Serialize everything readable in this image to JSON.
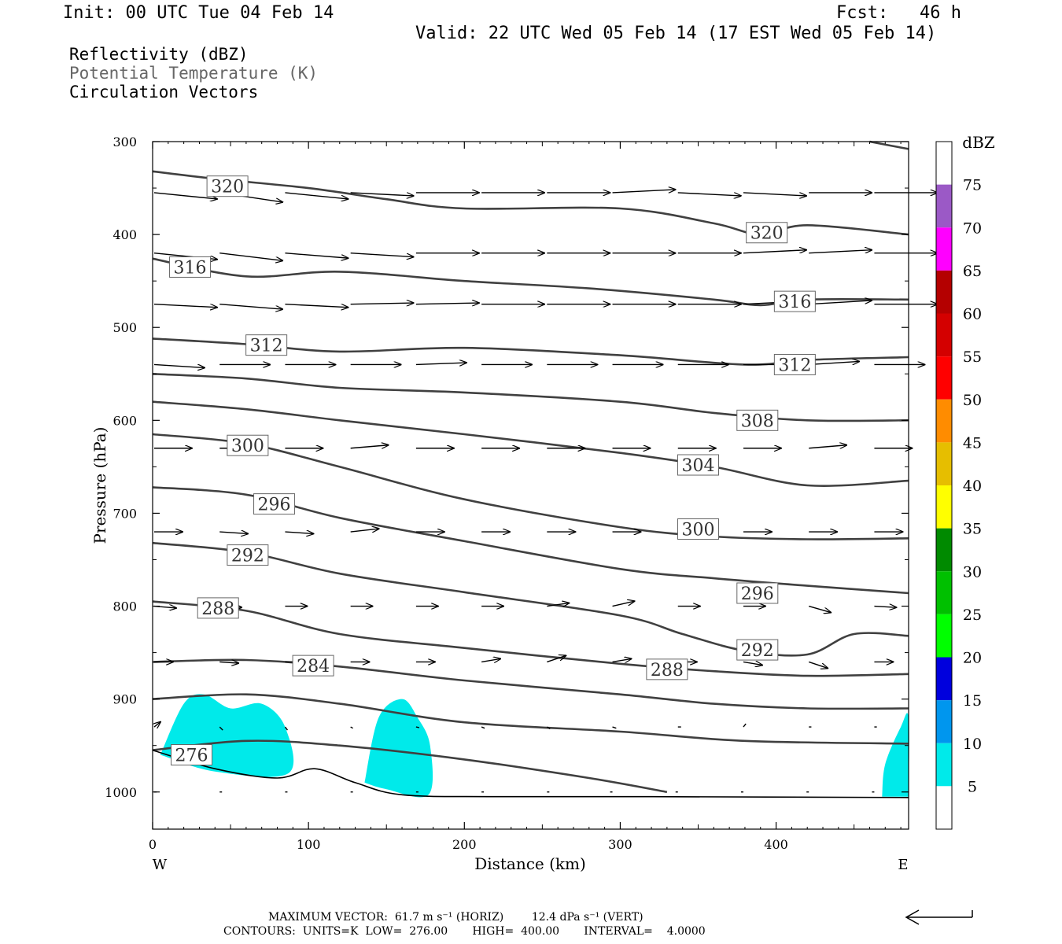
{
  "header": {
    "init": "Init: 00 UTC Tue 04 Feb 14",
    "fcst": "Fcst:   46 h",
    "valid": "Valid: 22 UTC Wed 05 Feb 14 (17 EST Wed 05 Feb 14)",
    "field1": "Reflectivity (dBZ)",
    "field2": "Potential Temperature (K)",
    "field3": "Circulation Vectors"
  },
  "footer": {
    "maxvec": "MAXIMUM VECTOR:  61.7 m s⁻¹ (HORIZ)        12.4 dPa s⁻¹ (VERT)",
    "contours": "CONTOURS:  UNITS=K  LOW=  276.00       HIGH=  400.00       INTERVAL=    4.0000"
  },
  "chart_data": {
    "type": "contour",
    "xlabel": "Distance (km)",
    "ylabel": "Pressure (hPa)",
    "xlim": [
      0,
      485
    ],
    "ylim": [
      1040,
      300
    ],
    "x_ticks": [
      "0",
      "100",
      "200",
      "300",
      "400"
    ],
    "y_ticks": [
      "300",
      "400",
      "500",
      "600",
      "700",
      "800",
      "900",
      "1000"
    ],
    "x_end_labels": {
      "left": "W",
      "right": "E"
    },
    "colorbar": {
      "title": "dBZ",
      "levels": [
        "75",
        "70",
        "65",
        "60",
        "55",
        "50",
        "45",
        "40",
        "35",
        "30",
        "25",
        "20",
        "15",
        "10",
        "5"
      ],
      "colors": [
        "#ffffff",
        "#9b59c6",
        "#ff00ff",
        "#b40000",
        "#d40000",
        "#ff0000",
        "#ff8c00",
        "#e6be00",
        "#ffff00",
        "#008a00",
        "#00c000",
        "#00ff00",
        "#0000dd",
        "#0096ee",
        "#00eaea",
        "#ffffff"
      ]
    },
    "contour_labels": [
      {
        "value": "320",
        "x": 48,
        "p": 348
      },
      {
        "value": "320",
        "x": 394,
        "p": 398
      },
      {
        "value": "316",
        "x": 24,
        "p": 435
      },
      {
        "value": "316",
        "x": 412,
        "p": 472
      },
      {
        "value": "312",
        "x": 73,
        "p": 519
      },
      {
        "value": "312",
        "x": 412,
        "p": 540
      },
      {
        "value": "308",
        "x": 388,
        "p": 600
      },
      {
        "value": "300",
        "x": 61,
        "p": 627
      },
      {
        "value": "304",
        "x": 350,
        "p": 648
      },
      {
        "value": "296",
        "x": 78,
        "p": 690
      },
      {
        "value": "300",
        "x": 350,
        "p": 717
      },
      {
        "value": "292",
        "x": 61,
        "p": 745
      },
      {
        "value": "296",
        "x": 388,
        "p": 786
      },
      {
        "value": "288",
        "x": 42,
        "p": 802
      },
      {
        "value": "292",
        "x": 388,
        "p": 847
      },
      {
        "value": "284",
        "x": 103,
        "p": 864
      },
      {
        "value": "288",
        "x": 330,
        "p": 868
      },
      {
        "value": "276",
        "x": 25,
        "p": 960
      }
    ],
    "theta_contours": [
      {
        "value": 324,
        "points": [
          [
            460,
            300
          ],
          [
            485,
            308
          ]
        ]
      },
      {
        "value": 320,
        "points": [
          [
            0,
            332
          ],
          [
            40,
            340
          ],
          [
            100,
            350
          ],
          [
            150,
            362
          ],
          [
            200,
            372
          ],
          [
            300,
            372
          ],
          [
            360,
            388
          ],
          [
            390,
            400
          ],
          [
            420,
            390
          ],
          [
            485,
            400
          ]
        ]
      },
      {
        "value": 316,
        "points": [
          [
            0,
            426
          ],
          [
            60,
            445
          ],
          [
            120,
            440
          ],
          [
            200,
            450
          ],
          [
            280,
            458
          ],
          [
            360,
            470
          ],
          [
            390,
            476
          ],
          [
            420,
            470
          ],
          [
            485,
            470
          ]
        ]
      },
      {
        "value": 312,
        "points": [
          [
            0,
            512
          ],
          [
            60,
            518
          ],
          [
            120,
            526
          ],
          [
            200,
            522
          ],
          [
            300,
            530
          ],
          [
            380,
            540
          ],
          [
            420,
            535
          ],
          [
            485,
            532
          ]
        ]
      },
      {
        "value": 308,
        "points": [
          [
            0,
            550
          ],
          [
            60,
            555
          ],
          [
            120,
            565
          ],
          [
            200,
            570
          ],
          [
            300,
            580
          ],
          [
            360,
            592
          ],
          [
            420,
            600
          ],
          [
            485,
            600
          ]
        ]
      },
      {
        "value": 304,
        "points": [
          [
            0,
            580
          ],
          [
            60,
            588
          ],
          [
            120,
            600
          ],
          [
            200,
            615
          ],
          [
            300,
            635
          ],
          [
            360,
            650
          ],
          [
            420,
            670
          ],
          [
            485,
            665
          ]
        ]
      },
      {
        "value": 300,
        "points": [
          [
            0,
            615
          ],
          [
            60,
            625
          ],
          [
            120,
            650
          ],
          [
            200,
            685
          ],
          [
            300,
            715
          ],
          [
            360,
            725
          ],
          [
            420,
            728
          ],
          [
            485,
            727
          ]
        ]
      },
      {
        "value": 296,
        "points": [
          [
            0,
            672
          ],
          [
            60,
            680
          ],
          [
            120,
            705
          ],
          [
            200,
            730
          ],
          [
            300,
            760
          ],
          [
            360,
            770
          ],
          [
            420,
            778
          ],
          [
            485,
            786
          ]
        ]
      },
      {
        "value": 292,
        "points": [
          [
            0,
            732
          ],
          [
            60,
            742
          ],
          [
            120,
            765
          ],
          [
            200,
            785
          ],
          [
            300,
            810
          ],
          [
            340,
            830
          ],
          [
            380,
            848
          ],
          [
            420,
            852
          ],
          [
            450,
            830
          ],
          [
            485,
            832
          ]
        ]
      },
      {
        "value": 288,
        "points": [
          [
            0,
            795
          ],
          [
            60,
            805
          ],
          [
            120,
            830
          ],
          [
            200,
            845
          ],
          [
            300,
            862
          ],
          [
            360,
            870
          ],
          [
            420,
            875
          ],
          [
            485,
            873
          ]
        ]
      },
      {
        "value": 284,
        "points": [
          [
            0,
            860
          ],
          [
            60,
            858
          ],
          [
            120,
            865
          ],
          [
            200,
            880
          ],
          [
            300,
            895
          ],
          [
            360,
            905
          ],
          [
            420,
            910
          ],
          [
            485,
            910
          ]
        ]
      },
      {
        "value": 280,
        "points": [
          [
            0,
            900
          ],
          [
            60,
            895
          ],
          [
            120,
            905
          ],
          [
            200,
            925
          ],
          [
            300,
            935
          ],
          [
            380,
            945
          ],
          [
            485,
            948
          ]
        ]
      },
      {
        "value": 276,
        "points": [
          [
            0,
            955
          ],
          [
            60,
            945
          ],
          [
            120,
            950
          ],
          [
            200,
            965
          ],
          [
            280,
            985
          ],
          [
            330,
            1000
          ]
        ]
      }
    ],
    "terrain": [
      [
        0,
        955
      ],
      [
        40,
        975
      ],
      [
        80,
        985
      ],
      [
        104,
        975
      ],
      [
        130,
        990
      ],
      [
        160,
        1003
      ],
      [
        220,
        1005
      ],
      [
        320,
        1005
      ],
      [
        485,
        1006
      ]
    ],
    "reflectivity_5dbz": [
      {
        "points": [
          [
            5,
            960
          ],
          [
            20,
            905
          ],
          [
            33,
            895
          ],
          [
            50,
            910
          ],
          [
            70,
            905
          ],
          [
            85,
            930
          ],
          [
            87,
            980
          ],
          [
            40,
            978
          ],
          [
            5,
            960
          ]
        ]
      },
      {
        "points": [
          [
            136,
            990
          ],
          [
            145,
            920
          ],
          [
            160,
            900
          ],
          [
            170,
            920
          ],
          [
            178,
            950
          ],
          [
            177,
            1003
          ],
          [
            150,
            997
          ],
          [
            136,
            990
          ]
        ]
      },
      {
        "points": [
          [
            468,
            1005
          ],
          [
            470,
            970
          ],
          [
            480,
            930
          ],
          [
            485,
            920
          ],
          [
            485,
            1005
          ]
        ]
      }
    ],
    "vector_rows": [
      {
        "p": 355,
        "u": [
          1,
          1,
          1,
          1,
          1,
          1,
          1,
          1,
          1,
          1,
          1,
          1
        ],
        "v": [
          0.1,
          0.15,
          0.1,
          0.05,
          0,
          0,
          0,
          -0.05,
          0.05,
          0.05,
          0,
          0
        ]
      },
      {
        "p": 420,
        "u": [
          1,
          1,
          1,
          1,
          1,
          1,
          1,
          1,
          1,
          1,
          1,
          1
        ],
        "v": [
          0.1,
          0.12,
          0.08,
          0.06,
          0,
          0,
          0,
          0,
          0,
          -0.05,
          -0.05,
          0
        ]
      },
      {
        "p": 475,
        "u": [
          1,
          1,
          1,
          1,
          1,
          1,
          1,
          1,
          1,
          1,
          1,
          1
        ],
        "v": [
          0.05,
          0.08,
          0.05,
          -0.02,
          -0.02,
          0,
          0,
          0,
          0,
          -0.05,
          -0.06,
          0
        ]
      },
      {
        "p": 540,
        "u": [
          0.8,
          0.8,
          0.8,
          0.8,
          0.8,
          0.8,
          0.8,
          0.8,
          0.8,
          0.8,
          0.8,
          0.8
        ],
        "v": [
          0.05,
          0,
          0,
          0,
          -0.03,
          0,
          0,
          0,
          0,
          0,
          -0.05,
          0
        ]
      },
      {
        "p": 630,
        "u": [
          0.6,
          0.6,
          0.6,
          0.6,
          0.6,
          0.6,
          0.6,
          0.6,
          0.6,
          0.6,
          0.6,
          0.6
        ],
        "v": [
          0,
          0,
          0,
          -0.05,
          0,
          0,
          0,
          0,
          0,
          0,
          -0.05,
          0
        ]
      },
      {
        "p": 720,
        "u": [
          0.45,
          0.45,
          0.45,
          0.45,
          0.45,
          0.45,
          0.45,
          0.45,
          0.45,
          0.45,
          0.45,
          0.45
        ],
        "v": [
          0,
          0.03,
          0.03,
          -0.05,
          0,
          0,
          0,
          0,
          0,
          0,
          0,
          0
        ]
      },
      {
        "p": 800,
        "u": [
          0.35,
          0.35,
          0.35,
          0.35,
          0.35,
          0.35,
          0.35,
          0.35,
          0.35,
          0.35,
          0.35,
          0.35
        ],
        "v": [
          0.03,
          0.02,
          0,
          0,
          0,
          0,
          -0.05,
          -0.08,
          0,
          0,
          0.1,
          0.02
        ]
      },
      {
        "p": 860,
        "u": [
          0.3,
          0.3,
          0.3,
          0.3,
          0.3,
          0.3,
          0.3,
          0.3,
          0.3,
          0.3,
          0.3,
          0.3
        ],
        "v": [
          0,
          0.02,
          0,
          0,
          0,
          -0.05,
          -0.1,
          -0.05,
          0,
          0.05,
          0.1,
          0
        ]
      },
      {
        "p": 930,
        "u": [
          0.1,
          0.05,
          0.02,
          0.03,
          0.05,
          0.05,
          0.05,
          0.06,
          0.05,
          0.04,
          0.04,
          0.04
        ],
        "v": [
          -0.08,
          0.05,
          0.05,
          0.02,
          0.01,
          0.02,
          0.03,
          0.02,
          0,
          -0.05,
          0,
          0
        ]
      },
      {
        "p": 1000,
        "u": [
          0,
          0,
          0,
          0.03,
          0.03,
          0.02,
          0.02,
          -0.05,
          -0.05,
          -0.05,
          -0.05,
          -0.05
        ],
        "v": [
          0,
          0,
          0,
          0,
          0,
          0,
          0,
          0,
          0,
          0,
          0,
          0
        ]
      }
    ]
  }
}
